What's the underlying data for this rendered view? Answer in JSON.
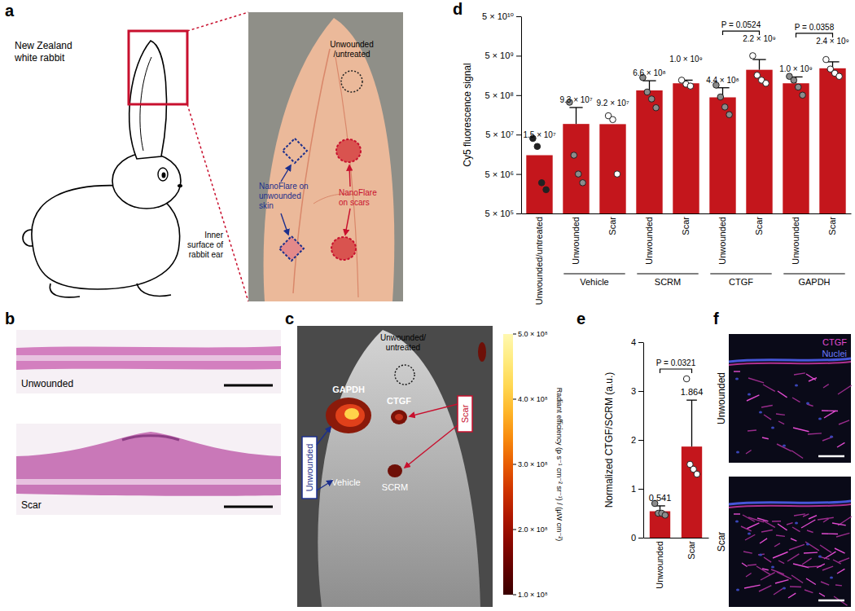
{
  "panel_labels": [
    "a",
    "b",
    "c",
    "d",
    "e",
    "f"
  ],
  "panels": {
    "a": {
      "species_lines": [
        "New Zealand",
        "white rabbit"
      ],
      "inner_lines": [
        "Inner",
        "surface of",
        "rabbit ear"
      ],
      "untreated_lines": [
        "Unwounded",
        "/untreated"
      ],
      "unwounded_lines": [
        "NanoFlare on",
        "unwounded",
        "skin"
      ],
      "scar_lines": [
        "NanoFlare",
        "on scars"
      ]
    },
    "b": {
      "images": [
        "Unwounded",
        "Scar"
      ]
    },
    "c": {
      "untreated_lines": [
        "Unwounded/",
        "untreated"
      ],
      "targets": [
        "GAPDH",
        "CTGF",
        "Vehicle",
        "SCRM"
      ],
      "unwounded": "Unwounded",
      "scar": "Scar",
      "colorbar": {
        "label": "Radiant efficiency (p s⁻¹ cm⁻² sr⁻¹) / (μW cm⁻²)",
        "range": [
          100000000,
          500000000
        ],
        "ticks": [
          {
            "value": 100000000,
            "label": "1.0 × 10⁸"
          },
          {
            "value": 200000000,
            "label": "2.0 × 10⁸"
          },
          {
            "value": 300000000,
            "label": "3.0 × 10⁸"
          },
          {
            "value": 400000000,
            "label": "4.0 × 10⁸"
          },
          {
            "value": 500000000,
            "label": "5.0 × 10⁸"
          }
        ]
      }
    },
    "f": {
      "channels": [
        "CTGF",
        "Nuclei"
      ],
      "images": [
        "Unwounded",
        "Scar"
      ]
    }
  },
  "chart_data": [
    {
      "type": "bar",
      "categories": [
        "Unwounded/untreated",
        "Unwounded",
        "Scar",
        "Unwounded",
        "Scar",
        "Unwounded",
        "Scar",
        "Unwounded",
        "Scar"
      ],
      "values": [
        15000000,
        93000000,
        92000000,
        660000000,
        1000000000,
        440000000,
        2200000000,
        1000000000,
        2400000000
      ],
      "value_labels": [
        "1.5 × 10⁷",
        "9.3 × 10⁷",
        "9.2 × 10⁷",
        "6.6 × 10⁸",
        "1.0 × 10⁹",
        "4.4 × 10⁸",
        "2.2 × 10⁹",
        "1.0 × 10⁹",
        "2.4 × 10⁹"
      ],
      "data_labels": true,
      "errors": [
        null,
        150000000,
        null,
        500000000,
        200000000,
        330000000,
        1800000000,
        450000000,
        1100000000
      ],
      "points": [
        [
          40000000,
          25000000,
          3000000,
          2000000
        ],
        [
          330000000,
          15000000,
          5000000,
          3000000
        ],
        [
          150000000,
          120000000,
          5000000
        ],
        [
          1400000000,
          600000000,
          400000000,
          240000000
        ],
        [
          1200000000,
          950000000,
          850000000
        ],
        [
          900000000,
          450000000,
          250000000,
          160000000
        ],
        [
          5000000000,
          1600000000,
          1200000000,
          1000000000
        ],
        [
          1500000000,
          1200000000,
          800000000,
          500000000
        ],
        [
          4000000000,
          2300000000,
          1800000000,
          1500000000
        ]
      ],
      "color": "#c4161c",
      "log": "y",
      "ylim": [
        500000,
        50000000000
      ],
      "yticks": [
        {
          "value": 500000,
          "label": "5 × 10⁵"
        },
        {
          "value": 5000000,
          "label": "5 × 10⁶"
        },
        {
          "value": 50000000,
          "label": "5 × 10⁷"
        },
        {
          "value": 500000000,
          "label": "5 × 10⁸"
        },
        {
          "value": 5000000000,
          "label": "5 × 10⁹"
        },
        {
          "value": 50000000000,
          "label": "5 × 10¹⁰"
        }
      ],
      "y_label": "Cy5 fluorescence signal",
      "groups": [
        {
          "label": "Vehicle",
          "categories": [
            1,
            2
          ]
        },
        {
          "label": "SCRM",
          "categories": [
            3,
            4
          ]
        },
        {
          "label": "CTGF",
          "categories": [
            5,
            6
          ]
        },
        {
          "label": "GAPDH",
          "categories": [
            7,
            8
          ]
        }
      ],
      "annotations": [
        {
          "text": "P = 0.0524",
          "categories": [
            5,
            6
          ]
        },
        {
          "text": "P = 0.0358",
          "categories": [
            7,
            8
          ]
        }
      ]
    },
    {
      "type": "bar",
      "categories": [
        "Unwounded",
        "Scar"
      ],
      "values": [
        0.541,
        1.864
      ],
      "data_labels": true,
      "errors": [
        0.11,
        0.95
      ],
      "points": [
        [
          0.7,
          0.5,
          0.5,
          0.46
        ],
        [
          3.25,
          1.5,
          1.4,
          1.3
        ]
      ],
      "color": "#c4161c",
      "ylim": [
        0,
        4
      ],
      "yticks": [
        0,
        1,
        2,
        3,
        4
      ],
      "y_label": "Normalized CTGF/SCRM (a.u.)",
      "annotations": [
        {
          "text": "P = 0.0321",
          "categories": [
            0,
            1
          ]
        }
      ]
    }
  ]
}
